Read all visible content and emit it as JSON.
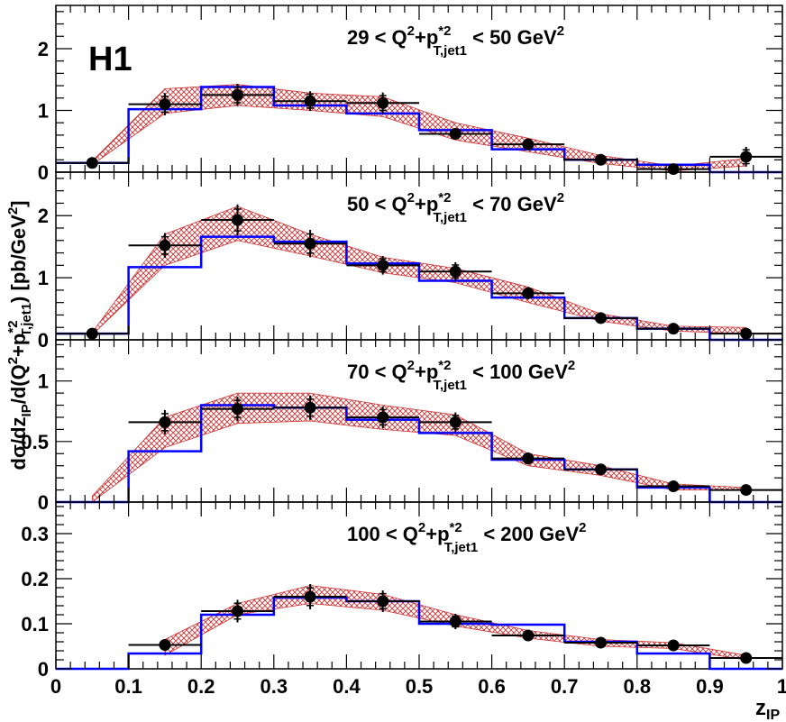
{
  "experiment_label": "H1",
  "ylabel": {
    "prefix": "dσ/dz",
    "sub1": "IP",
    "mid": "/d(Q",
    "sup1": "2",
    "plus": "+p",
    "sup2": "*2",
    "sub2": "T,jet1",
    "suffix": ")  [pb/GeV",
    "sup3": "2",
    "end": "]"
  },
  "xlabel": {
    "main": "z",
    "sub": "IP"
  },
  "panel_label_parts": {
    "lt": "<",
    "q": "Q",
    "sq": "2",
    "plus": "+p",
    "star": "*2",
    "sub": "T,jet1",
    "unit": "GeV",
    "unit_sq": "2"
  },
  "colors": {
    "data": "#000000",
    "model_line": "#0000ff",
    "band": "#cc3333"
  },
  "chart_data": [
    {
      "type": "histogram",
      "panel": 1,
      "title": {
        "low": "29",
        "high": "50"
      },
      "xlim": [
        0,
        1
      ],
      "ylim": [
        0,
        2.7
      ],
      "yticks": [
        0,
        1,
        2
      ],
      "x_edges": [
        0,
        0.1,
        0.2,
        0.3,
        0.4,
        0.5,
        0.6,
        0.7,
        0.8,
        0.9,
        1.0
      ],
      "data": {
        "x": [
          0.05,
          0.15,
          0.25,
          0.35,
          0.45,
          0.55,
          0.65,
          0.75,
          0.85,
          0.95
        ],
        "y": [
          0.15,
          1.1,
          1.25,
          1.15,
          1.12,
          0.62,
          0.45,
          0.2,
          0.05,
          0.25
        ],
        "err": [
          0.04,
          0.18,
          0.18,
          0.16,
          0.17,
          0.09,
          0.07,
          0.05,
          0.06,
          0.16
        ]
      },
      "model": [
        0.15,
        1.02,
        1.38,
        1.08,
        0.95,
        0.68,
        0.37,
        0.2,
        0.12,
        0.0
      ],
      "band_lo": [
        0.12,
        0.95,
        1.08,
        1.0,
        0.9,
        0.52,
        0.33,
        0.14,
        0.02,
        0.1
      ],
      "band_hi": [
        0.18,
        1.35,
        1.42,
        1.28,
        1.22,
        0.8,
        0.55,
        0.27,
        0.1,
        0.22
      ]
    },
    {
      "type": "histogram",
      "panel": 2,
      "title": {
        "low": "50",
        "high": "70"
      },
      "xlim": [
        0,
        1
      ],
      "ylim": [
        0,
        2.7
      ],
      "yticks": [
        0,
        1,
        2
      ],
      "x_edges": [
        0,
        0.1,
        0.2,
        0.3,
        0.4,
        0.5,
        0.6,
        0.7,
        0.8,
        0.9,
        1.0
      ],
      "data": {
        "x": [
          0.05,
          0.15,
          0.25,
          0.35,
          0.45,
          0.55,
          0.65,
          0.75,
          0.85,
          0.95
        ],
        "y": [
          0.1,
          1.52,
          1.93,
          1.55,
          1.2,
          1.1,
          0.75,
          0.35,
          0.18,
          0.1
        ],
        "err": [
          0.03,
          0.2,
          0.25,
          0.22,
          0.15,
          0.15,
          0.1,
          0.06,
          0.06,
          0.06
        ]
      },
      "model": [
        0.1,
        1.17,
        1.66,
        1.58,
        1.23,
        0.95,
        0.68,
        0.35,
        0.18,
        0.0
      ],
      "band_lo": [
        0.08,
        1.2,
        1.6,
        1.35,
        1.08,
        0.92,
        0.6,
        0.3,
        0.14,
        0.1
      ],
      "band_hi": [
        0.12,
        1.7,
        2.15,
        1.7,
        1.33,
        1.15,
        0.85,
        0.42,
        0.22,
        0.2
      ]
    },
    {
      "type": "histogram",
      "panel": 3,
      "title": {
        "low": "70",
        "high": "100"
      },
      "xlim": [
        0,
        1
      ],
      "ylim": [
        0,
        1.34
      ],
      "yticks": [
        0,
        0.5,
        1
      ],
      "x_edges": [
        0,
        0.1,
        0.2,
        0.3,
        0.4,
        0.5,
        0.6,
        0.7,
        0.8,
        0.9,
        1.0
      ],
      "data": {
        "x": [
          0.05,
          0.15,
          0.25,
          0.35,
          0.45,
          0.55,
          0.65,
          0.75,
          0.85,
          0.95
        ],
        "y": [
          null,
          0.66,
          0.77,
          0.78,
          0.7,
          0.66,
          0.36,
          0.27,
          0.13,
          0.1
        ],
        "err": [
          null,
          0.1,
          0.1,
          0.1,
          0.09,
          0.08,
          0.05,
          0.04,
          0.03,
          0.04
        ]
      },
      "model": [
        0.0,
        0.42,
        0.8,
        0.78,
        0.68,
        0.57,
        0.35,
        0.27,
        0.12,
        0.0
      ],
      "band_lo": [
        0.0,
        0.45,
        0.65,
        0.67,
        0.6,
        0.55,
        0.3,
        0.22,
        0.1,
        0.1
      ],
      "band_hi": [
        0.05,
        0.7,
        0.9,
        0.9,
        0.8,
        0.72,
        0.4,
        0.3,
        0.15,
        0.12
      ]
    },
    {
      "type": "histogram",
      "panel": 4,
      "title": {
        "low": "100",
        "high": "200"
      },
      "xlim": [
        0,
        1
      ],
      "ylim": [
        0,
        0.37
      ],
      "yticks": [
        0,
        0.1,
        0.2,
        0.3
      ],
      "x_edges": [
        0,
        0.1,
        0.2,
        0.3,
        0.4,
        0.5,
        0.6,
        0.7,
        0.8,
        0.9,
        1.0
      ],
      "data": {
        "x": [
          0.15,
          0.25,
          0.35,
          0.45,
          0.55,
          0.65,
          0.75,
          0.85,
          0.95
        ],
        "y": [
          0.053,
          0.128,
          0.16,
          0.15,
          0.105,
          0.074,
          0.058,
          0.052,
          0.024
        ],
        "err": [
          0.013,
          0.025,
          0.028,
          0.024,
          0.017,
          0.012,
          0.009,
          0.01,
          0.01
        ]
      },
      "model": [
        0.0,
        0.034,
        0.12,
        0.158,
        0.15,
        0.1,
        0.098,
        0.06,
        0.034,
        0.0
      ],
      "band_lo": [
        0.03,
        0.12,
        0.145,
        0.13,
        0.095,
        0.068,
        0.05,
        0.045,
        0.02
      ],
      "band_hi": [
        0.065,
        0.145,
        0.185,
        0.165,
        0.12,
        0.085,
        0.065,
        0.058,
        0.03
      ],
      "x_ticklabels": [
        "0",
        "0.1",
        "0.2",
        "0.3",
        "0.4",
        "0.5",
        "0.6",
        "0.7",
        "0.8",
        "0.9",
        "1"
      ]
    }
  ]
}
